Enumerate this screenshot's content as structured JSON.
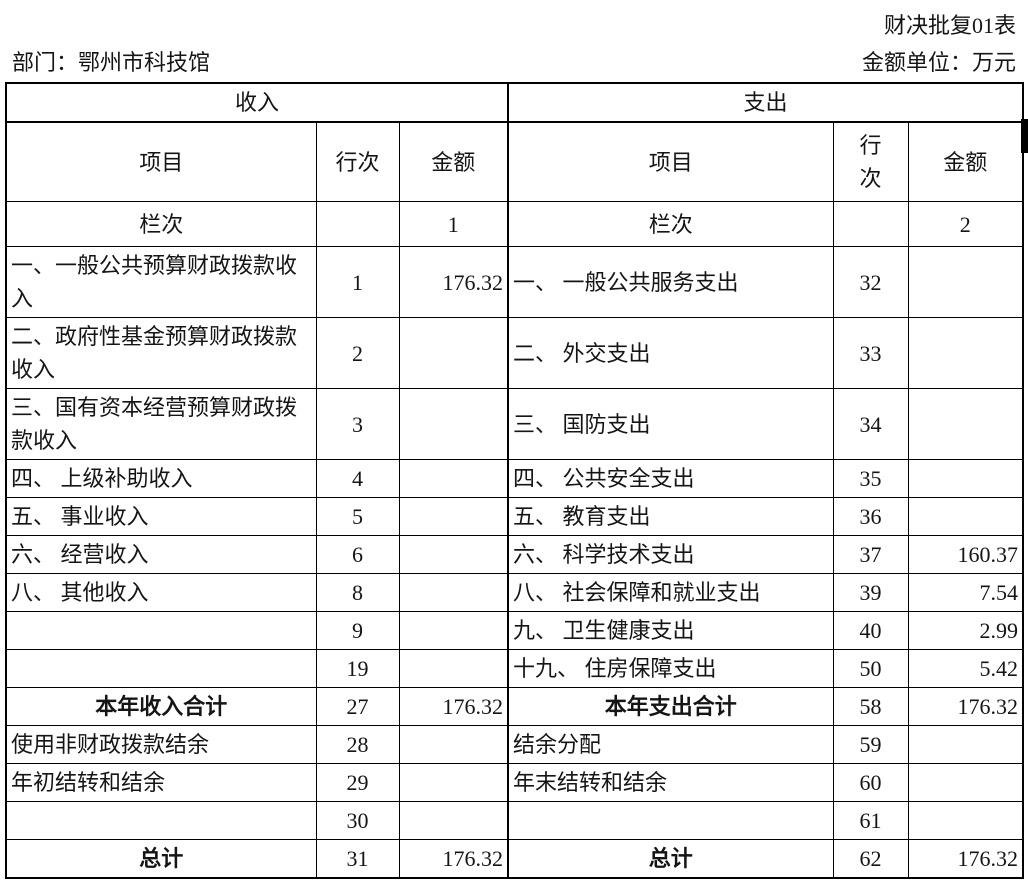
{
  "header": {
    "doc_label": "财决批复01表",
    "department": "部门：鄂州市科技馆",
    "unit": "金额单位：万元"
  },
  "colors": {
    "border": "#000000",
    "text": "#151515",
    "background": "#ffffff",
    "scrollbar": "#000000"
  },
  "table": {
    "sections": {
      "income": "收入",
      "expense": "支出"
    },
    "columns": {
      "item": "项目",
      "row_no": "行次",
      "row_no_wrapped": "行\n次",
      "amount": "金额"
    },
    "column_index_row": {
      "label": "栏次",
      "income_index": "1",
      "expense_index": "2"
    },
    "rows": [
      {
        "is_total": false,
        "income": {
          "item": "一、一般公共预算财政拨款收入",
          "row_no": "1",
          "amount": "176.32"
        },
        "expense": {
          "item": "一、 一般公共服务支出",
          "row_no": "32",
          "amount": ""
        }
      },
      {
        "is_total": false,
        "income": {
          "item": "二、政府性基金预算财政拨款收入",
          "row_no": "2",
          "amount": ""
        },
        "expense": {
          "item": "二、 外交支出",
          "row_no": "33",
          "amount": ""
        }
      },
      {
        "is_total": false,
        "income": {
          "item": "三、国有资本经营预算财政拨款收入",
          "row_no": "3",
          "amount": ""
        },
        "expense": {
          "item": "三、 国防支出",
          "row_no": "34",
          "amount": ""
        }
      },
      {
        "is_total": false,
        "income": {
          "item": "四、 上级补助收入",
          "row_no": "4",
          "amount": ""
        },
        "expense": {
          "item": "四、 公共安全支出",
          "row_no": "35",
          "amount": ""
        }
      },
      {
        "is_total": false,
        "income": {
          "item": "五、 事业收入",
          "row_no": "5",
          "amount": ""
        },
        "expense": {
          "item": "五、 教育支出",
          "row_no": "36",
          "amount": ""
        }
      },
      {
        "is_total": false,
        "income": {
          "item": "六、 经营收入",
          "row_no": "6",
          "amount": ""
        },
        "expense": {
          "item": "六、 科学技术支出",
          "row_no": "37",
          "amount": "160.37"
        }
      },
      {
        "is_total": false,
        "income": {
          "item": "八、 其他收入",
          "row_no": "8",
          "amount": ""
        },
        "expense": {
          "item": "八、 社会保障和就业支出",
          "row_no": "39",
          "amount": "7.54"
        }
      },
      {
        "is_total": false,
        "income": {
          "item": "",
          "row_no": "9",
          "amount": ""
        },
        "expense": {
          "item": "九、 卫生健康支出",
          "row_no": "40",
          "amount": "2.99"
        }
      },
      {
        "is_total": false,
        "income": {
          "item": "",
          "row_no": "19",
          "amount": ""
        },
        "expense": {
          "item": "十九、 住房保障支出",
          "row_no": "50",
          "amount": "5.42"
        }
      },
      {
        "is_total": true,
        "income": {
          "item": "本年收入合计",
          "row_no": "27",
          "amount": "176.32"
        },
        "expense": {
          "item": "本年支出合计",
          "row_no": "58",
          "amount": "176.32"
        }
      },
      {
        "is_total": false,
        "income": {
          "item": "使用非财政拨款结余",
          "row_no": "28",
          "amount": ""
        },
        "expense": {
          "item": "结余分配",
          "row_no": "59",
          "amount": ""
        }
      },
      {
        "is_total": false,
        "income": {
          "item": "年初结转和结余",
          "row_no": "29",
          "amount": ""
        },
        "expense": {
          "item": "年末结转和结余",
          "row_no": "60",
          "amount": ""
        }
      },
      {
        "is_total": false,
        "income": {
          "item": "",
          "row_no": "30",
          "amount": ""
        },
        "expense": {
          "item": "",
          "row_no": "61",
          "amount": ""
        }
      },
      {
        "is_total": true,
        "income": {
          "item": "总计",
          "row_no": "31",
          "amount": "176.32"
        },
        "expense": {
          "item": "总计",
          "row_no": "62",
          "amount": "176.32"
        }
      }
    ]
  }
}
